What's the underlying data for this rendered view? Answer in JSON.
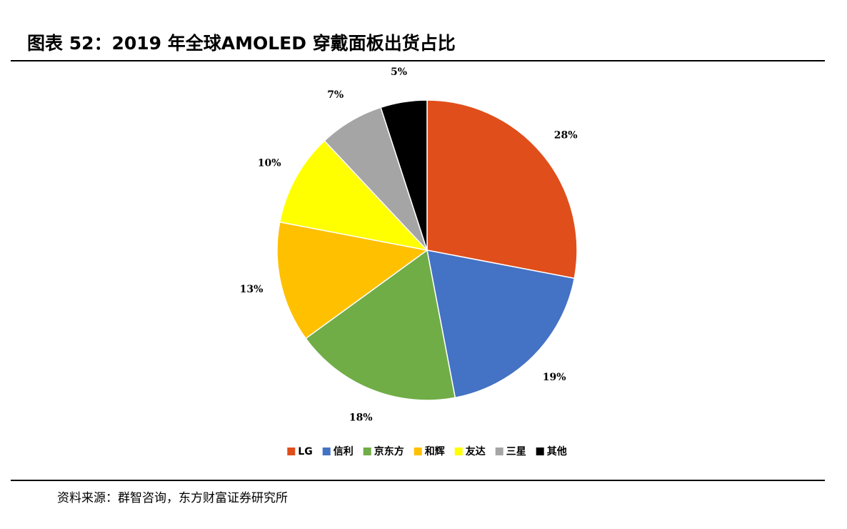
{
  "chart_data": {
    "type": "pie",
    "title": "图表 52：2019 年全球AMOLED 穿戴面板出货占比",
    "categories": [
      "LG",
      "信利",
      "京东方",
      "和辉",
      "友达",
      "三星",
      "其他"
    ],
    "values": [
      28,
      19,
      18,
      13,
      10,
      7,
      5
    ],
    "value_labels": [
      "28%",
      "19%",
      "18%",
      "13%",
      "10%",
      "7%",
      "5%"
    ],
    "colors": [
      "#e04e1b",
      "#4472c4",
      "#70ad47",
      "#ffc000",
      "#ffff00",
      "#a5a5a5",
      "#000000"
    ],
    "legend": "bottom",
    "source": "资料来源：群智咨询，东方财富证券研究所"
  }
}
